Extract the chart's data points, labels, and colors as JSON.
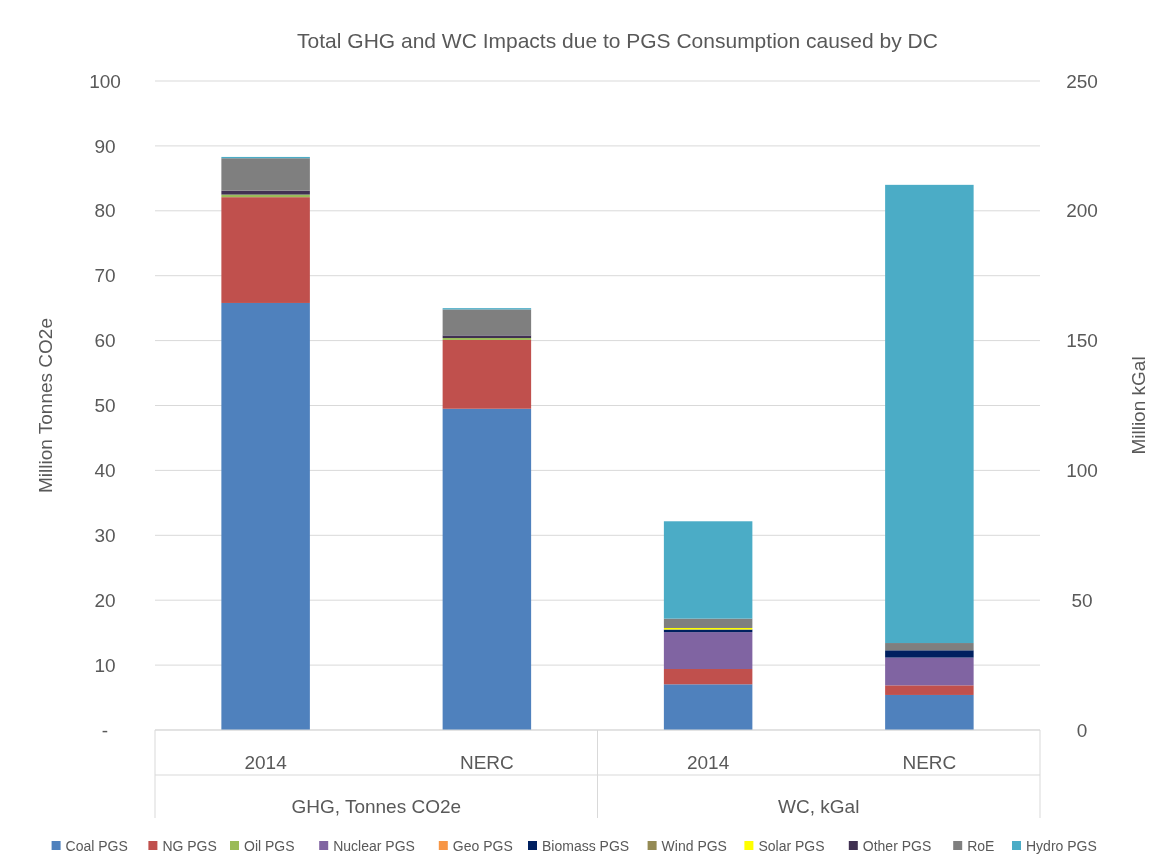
{
  "chart_data": {
    "type": "bar",
    "title": "Total GHG and WC Impacts due to PGS Consumption caused by DC",
    "ylabel": "Million Tonnes CO2e",
    "y2label": "Million kGal",
    "categories": [
      "2014",
      "NERC",
      "2014",
      "NERC"
    ],
    "annotations": [
      "GHG, Tonnes CO2e",
      "WC, kGal"
    ],
    "stacked": true,
    "ylim": [
      0,
      100
    ],
    "yticks": [
      {
        "value": 0,
        "label": "-"
      },
      10,
      20,
      30,
      40,
      50,
      60,
      70,
      80,
      90,
      100
    ],
    "y2lim": [
      0,
      250
    ],
    "y2ticks": [
      0,
      50,
      100,
      150,
      200,
      250
    ],
    "grid": "y",
    "legend": "bottom",
    "series": [
      {
        "name": "Coal PGS",
        "color": "#4f81bd",
        "values": [
          65.8,
          49.5,
          null,
          null
        ]
      },
      {
        "name": "NG PGS",
        "color": "#c0504d",
        "values": [
          16.3,
          10.6,
          null,
          null
        ]
      },
      {
        "name": "Oil PGS",
        "color": "#9bbb59",
        "values": [
          0.4,
          0.3,
          null,
          null
        ]
      },
      {
        "name": "Nuclear PGS",
        "color": "#8064a2",
        "values": [
          null,
          null,
          null,
          null
        ]
      },
      {
        "name": "Geo PGS",
        "color": "#f79646",
        "values": [
          null,
          null,
          null,
          null
        ]
      },
      {
        "name": "Biomass PGS",
        "color": "#002060",
        "values": [
          null,
          null,
          null,
          null
        ]
      },
      {
        "name": "Wind PGS",
        "color": "#948a54",
        "values": [
          null,
          null,
          null,
          null
        ]
      },
      {
        "name": "Solar PGS",
        "color": "#ffff00",
        "values": [
          null,
          null,
          null,
          null
        ]
      },
      {
        "name": "Other PGS",
        "color": "#403152",
        "values": [
          0.6,
          0.4,
          null,
          null
        ]
      },
      {
        "name": "RoE",
        "color": "#7f7f7f",
        "values": [
          5.0,
          4.0,
          null,
          null
        ]
      },
      {
        "name": "Hydro PGS",
        "color": "#4bacc6",
        "values": [
          0.2,
          0.2,
          null,
          null
        ]
      },
      {
        "color": "#4f81bd",
        "axis": "y2",
        "values": [
          null,
          null,
          17.6,
          13.5
        ]
      },
      {
        "color": "#c0504d",
        "axis": "y2",
        "values": [
          null,
          null,
          5.9,
          3.7
        ]
      },
      {
        "color": "#8064a2",
        "axis": "y2",
        "values": [
          null,
          null,
          14.2,
          10.7
        ]
      },
      {
        "color": "#002060",
        "axis": "y2",
        "values": [
          null,
          null,
          1.0,
          2.8
        ]
      },
      {
        "color": "#ffff00",
        "axis": "y2",
        "values": [
          null,
          null,
          0.6,
          null
        ]
      },
      {
        "color": "#7f7f7f",
        "axis": "y2",
        "values": [
          null,
          null,
          3.6,
          2.8
        ]
      },
      {
        "color": "#4bacc6",
        "axis": "y2",
        "values": [
          null,
          null,
          37.5,
          176.5
        ]
      }
    ]
  }
}
